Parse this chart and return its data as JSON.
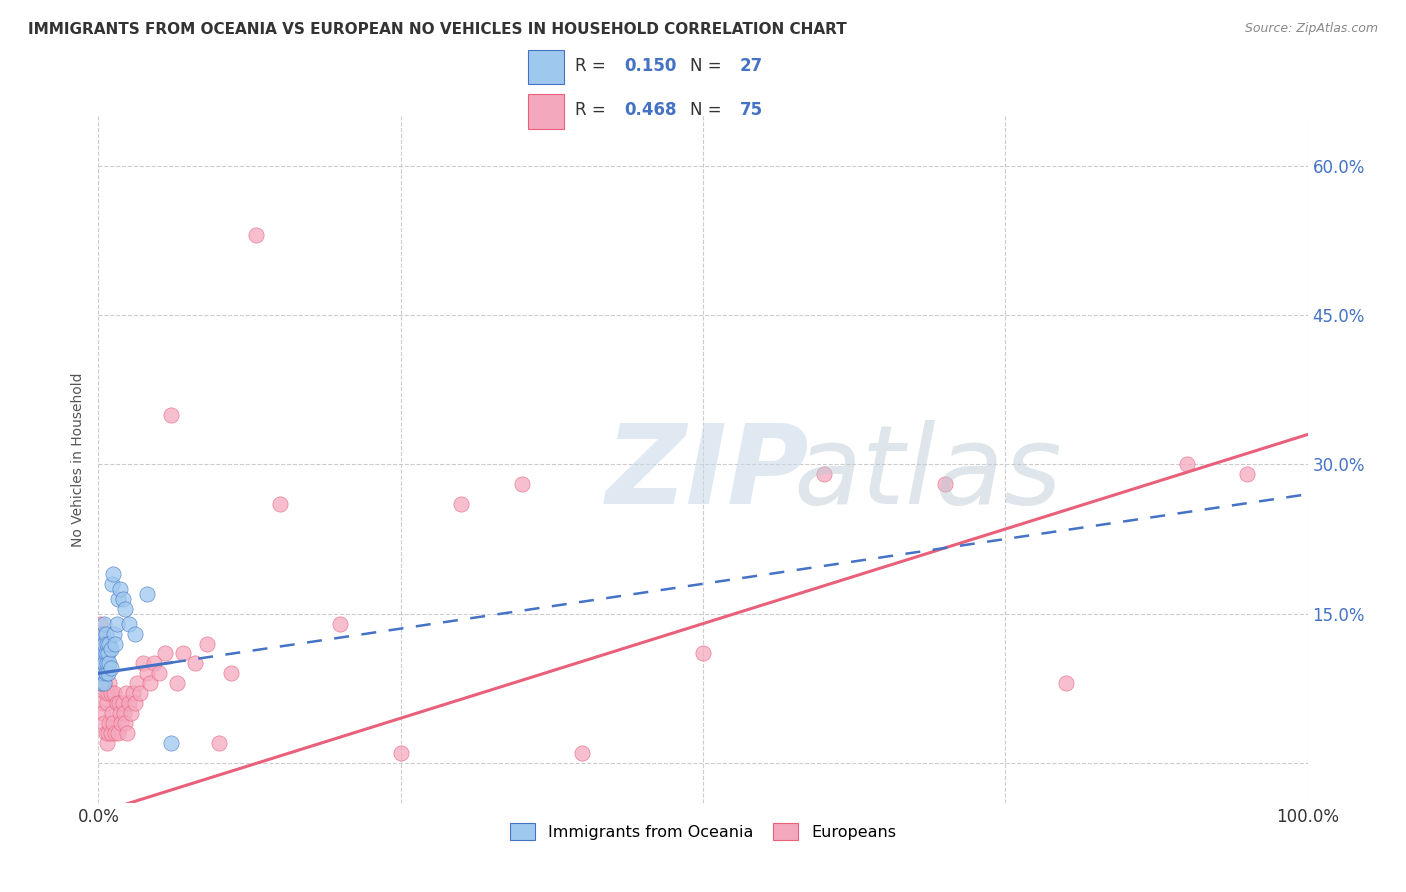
{
  "title": "IMMIGRANTS FROM OCEANIA VS EUROPEAN NO VEHICLES IN HOUSEHOLD CORRELATION CHART",
  "source": "Source: ZipAtlas.com",
  "ylabel": "No Vehicles in Household",
  "yticks": [
    0.0,
    0.15,
    0.3,
    0.45,
    0.6
  ],
  "ytick_labels": [
    "",
    "15.0%",
    "30.0%",
    "45.0%",
    "60.0%"
  ],
  "xlim": [
    0.0,
    1.0
  ],
  "ylim": [
    -0.04,
    0.65
  ],
  "legend_label1": "Immigrants from Oceania",
  "legend_label2": "Europeans",
  "color_blue": "#9EC8EE",
  "color_pink": "#F4A8BE",
  "line_blue": "#4472C4",
  "line_pink": "#E8607A",
  "oceania_x": [
    0.001,
    0.002,
    0.002,
    0.003,
    0.003,
    0.003,
    0.004,
    0.004,
    0.004,
    0.005,
    0.005,
    0.005,
    0.005,
    0.006,
    0.006,
    0.006,
    0.007,
    0.007,
    0.008,
    0.008,
    0.009,
    0.009,
    0.01,
    0.01,
    0.011,
    0.012,
    0.013,
    0.014,
    0.015,
    0.016,
    0.018,
    0.02,
    0.022,
    0.025,
    0.03,
    0.04,
    0.06
  ],
  "oceania_y": [
    0.1,
    0.08,
    0.11,
    0.09,
    0.1,
    0.12,
    0.09,
    0.11,
    0.13,
    0.08,
    0.1,
    0.12,
    0.14,
    0.09,
    0.11,
    0.13,
    0.1,
    0.12,
    0.09,
    0.11,
    0.1,
    0.12,
    0.095,
    0.115,
    0.18,
    0.19,
    0.13,
    0.12,
    0.14,
    0.165,
    0.175,
    0.165,
    0.155,
    0.14,
    0.13,
    0.17,
    0.02
  ],
  "europeans_x": [
    0.001,
    0.002,
    0.002,
    0.003,
    0.003,
    0.004,
    0.004,
    0.005,
    0.005,
    0.006,
    0.006,
    0.007,
    0.007,
    0.008,
    0.008,
    0.009,
    0.009,
    0.01,
    0.01,
    0.011,
    0.012,
    0.013,
    0.014,
    0.015,
    0.016,
    0.017,
    0.018,
    0.019,
    0.02,
    0.021,
    0.022,
    0.023,
    0.024,
    0.025,
    0.027,
    0.029,
    0.03,
    0.032,
    0.034,
    0.037,
    0.04,
    0.043,
    0.046,
    0.05,
    0.055,
    0.06,
    0.065,
    0.07,
    0.08,
    0.09,
    0.1,
    0.11,
    0.13,
    0.15,
    0.2,
    0.25,
    0.3,
    0.35,
    0.4,
    0.5,
    0.6,
    0.7,
    0.8,
    0.9,
    0.95
  ],
  "europeans_y": [
    0.14,
    0.08,
    0.13,
    0.06,
    0.09,
    0.05,
    0.1,
    0.04,
    0.08,
    0.03,
    0.07,
    0.02,
    0.06,
    0.03,
    0.07,
    0.04,
    0.08,
    0.03,
    0.07,
    0.05,
    0.04,
    0.07,
    0.03,
    0.06,
    0.03,
    0.06,
    0.05,
    0.04,
    0.06,
    0.05,
    0.04,
    0.07,
    0.03,
    0.06,
    0.05,
    0.07,
    0.06,
    0.08,
    0.07,
    0.1,
    0.09,
    0.08,
    0.1,
    0.09,
    0.11,
    0.35,
    0.08,
    0.11,
    0.1,
    0.12,
    0.02,
    0.09,
    0.53,
    0.26,
    0.14,
    0.01,
    0.26,
    0.28,
    0.01,
    0.11,
    0.29,
    0.28,
    0.08,
    0.3,
    0.29
  ],
  "r_blue": "0.150",
  "n_blue": "27",
  "r_pink": "0.468",
  "n_pink": "75"
}
